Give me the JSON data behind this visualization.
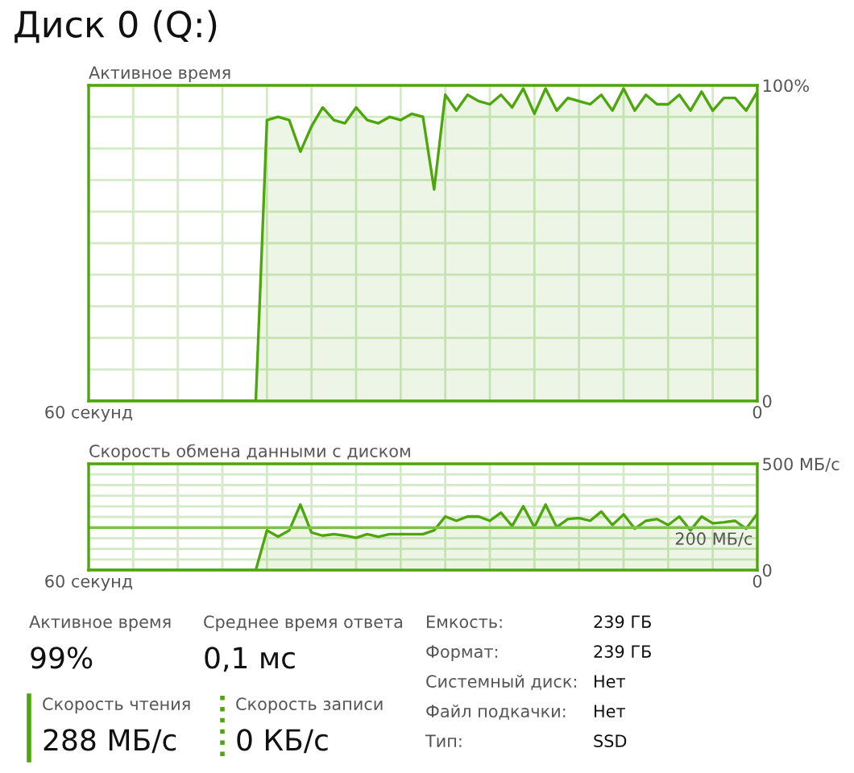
{
  "chart_data": [
    {
      "type": "other",
      "title": "Диск 0 (Q:)"
    },
    {
      "type": "area",
      "title": "Активное время",
      "x": [
        60,
        45,
        44,
        43,
        42,
        41,
        40,
        39,
        38,
        37,
        36,
        35,
        34,
        33,
        32,
        31,
        30,
        29,
        28,
        27,
        26,
        25,
        24,
        23,
        22,
        21,
        20,
        19,
        18,
        17,
        16,
        15,
        14,
        13,
        12,
        11,
        10,
        9,
        8,
        7,
        6,
        5,
        4,
        3,
        2,
        1,
        0
      ],
      "series": [
        {
          "color": "#4da60c",
          "values": [
            0,
            0,
            89,
            90,
            89,
            79,
            87,
            93,
            89,
            88,
            93,
            89,
            88,
            90,
            89,
            91,
            90,
            67,
            97,
            92,
            97,
            95,
            94,
            97,
            93,
            99,
            91,
            99,
            92,
            96,
            95,
            94,
            97,
            92,
            99,
            92,
            97,
            94,
            94,
            97,
            92,
            98,
            92,
            96,
            96,
            92,
            98
          ]
        }
      ],
      "xlim": [
        60,
        0
      ],
      "xticks": [
        {
          "value": 60,
          "label": "60 секунд"
        },
        {
          "value": 56,
          "label": null
        },
        {
          "value": 52,
          "label": null
        },
        {
          "value": 48,
          "label": null
        },
        {
          "value": 44,
          "label": null
        },
        {
          "value": 40,
          "label": null
        },
        {
          "value": 36,
          "label": null
        },
        {
          "value": 32,
          "label": null
        },
        {
          "value": 28,
          "label": null
        },
        {
          "value": 24,
          "label": null
        },
        {
          "value": 20,
          "label": null
        },
        {
          "value": 16,
          "label": null
        },
        {
          "value": 12,
          "label": null
        },
        {
          "value": 8,
          "label": null
        },
        {
          "value": 4,
          "label": null
        },
        0
      ],
      "ylim": [
        0,
        100
      ],
      "yticks": [
        0,
        {
          "value": 10,
          "label": null
        },
        {
          "value": 20,
          "label": null
        },
        {
          "value": 30,
          "label": null
        },
        {
          "value": 40,
          "label": null
        },
        {
          "value": 50,
          "label": null
        },
        {
          "value": 60,
          "label": null
        },
        {
          "value": 70,
          "label": null
        },
        {
          "value": 80,
          "label": null
        },
        {
          "value": 90,
          "label": null
        },
        {
          "value": 100,
          "label": "100%"
        }
      ],
      "grid": true,
      "legend": false
    },
    {
      "type": "area",
      "title": "Скорость обмена данными с диском",
      "x": [
        60,
        45,
        44,
        43,
        42,
        41,
        40,
        39,
        38,
        37,
        36,
        35,
        34,
        33,
        32,
        31,
        30,
        29,
        28,
        27,
        26,
        25,
        24,
        23,
        22,
        21,
        20,
        19,
        18,
        17,
        16,
        15,
        14,
        13,
        12,
        11,
        10,
        9,
        8,
        7,
        6,
        5,
        4,
        3,
        2,
        1,
        0
      ],
      "series": [
        {
          "color": "#4da60c",
          "values": [
            0,
            0,
            187,
            157,
            187,
            308,
            177,
            162,
            169,
            162,
            152,
            169,
            157,
            169,
            169,
            169,
            169,
            187,
            252,
            232,
            252,
            252,
            232,
            270,
            207,
            300,
            202,
            308,
            202,
            240,
            245,
            232,
            275,
            212,
            262,
            195,
            232,
            240,
            212,
            252,
            187,
            252,
            220,
            225,
            232,
            195,
            265
          ]
        }
      ],
      "xlim": [
        60,
        0
      ],
      "xticks": [
        {
          "value": 60,
          "label": "60 секунд"
        },
        {
          "value": 56,
          "label": null
        },
        {
          "value": 52,
          "label": null
        },
        {
          "value": 48,
          "label": null
        },
        {
          "value": 44,
          "label": null
        },
        {
          "value": 40,
          "label": null
        },
        {
          "value": 36,
          "label": null
        },
        {
          "value": 32,
          "label": null
        },
        {
          "value": 28,
          "label": null
        },
        {
          "value": 24,
          "label": null
        },
        {
          "value": 20,
          "label": null
        },
        {
          "value": 16,
          "label": null
        },
        {
          "value": 12,
          "label": null
        },
        {
          "value": 8,
          "label": null
        },
        {
          "value": 4,
          "label": null
        },
        0
      ],
      "ylim": [
        0,
        500
      ],
      "yticks": [
        0,
        {
          "value": 50,
          "label": null
        },
        {
          "value": 100,
          "label": null
        },
        {
          "value": 150,
          "label": null
        },
        {
          "value": 250,
          "label": null
        },
        {
          "value": 300,
          "label": null
        },
        {
          "value": 350,
          "label": null
        },
        {
          "value": 400,
          "label": null
        },
        {
          "value": 450,
          "label": null
        },
        {
          "value": 500,
          "label": "500 МБ/с"
        }
      ],
      "ref_lines": [
        {
          "axis": "y",
          "value": 200,
          "label": "200 МБ/с",
          "color": "#7cc04d"
        }
      ],
      "grid": true,
      "legend": false
    },
    {
      "type": "other",
      "annotations": [
        "Активное время",
        "99%",
        "Среднее время ответа",
        "0,1 мс",
        "Скорость чтения",
        "288 МБ/с",
        "Скорость записи",
        "0 КБ/с",
        "Емкость:",
        "239 ГБ",
        "Формат:",
        "239 ГБ",
        "Системный диск:",
        "Нет",
        "Файл подкачки:",
        "Нет",
        "Тип:",
        "SSD"
      ]
    }
  ]
}
